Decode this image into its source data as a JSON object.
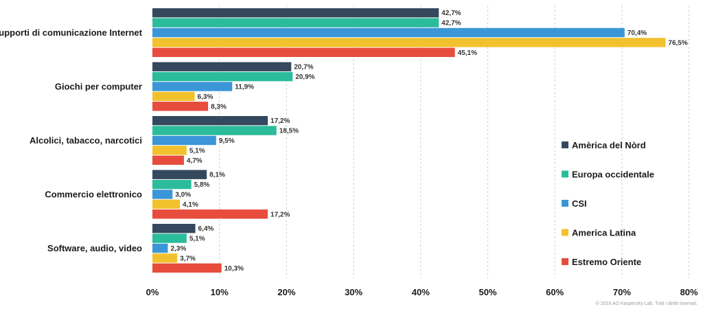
{
  "chart_data": {
    "type": "bar",
    "orientation": "horizontal",
    "categories": [
      "Supporti di comunicazione Internet",
      "Giochi per computer",
      "Alcolici, tabacco, narcotici",
      "Commercio elettronico",
      "Software, audio, video"
    ],
    "series": [
      {
        "name": "Amèrica del Nòrd",
        "color": "#34495e",
        "values": [
          42.7,
          20.7,
          17.2,
          8.1,
          6.4
        ],
        "labels": [
          "42,7%",
          "20,7%",
          "17,2%",
          "8,1%",
          "6,4%"
        ]
      },
      {
        "name": "Europa occidentale",
        "color": "#2bbc9b",
        "values": [
          42.7,
          20.9,
          18.5,
          5.8,
          5.1
        ],
        "labels": [
          "42,7%",
          "20,9%",
          "18,5%",
          "5,8%",
          "5,1%"
        ]
      },
      {
        "name": "CSI",
        "color": "#3b96d8",
        "values": [
          70.4,
          11.9,
          9.5,
          3.0,
          2.3
        ],
        "labels": [
          "70,4%",
          "11,9%",
          "9,5%",
          "3,0%",
          "2,3%"
        ]
      },
      {
        "name": "America Latina",
        "color": "#f2c12e",
        "values": [
          76.5,
          6.3,
          5.1,
          4.1,
          3.7
        ],
        "labels": [
          "76,5%",
          "6,3%",
          "5,1%",
          "4,1%",
          "3,7%"
        ]
      },
      {
        "name": "Estremo Oriente",
        "color": "#e74c3c",
        "values": [
          45.1,
          8.3,
          4.7,
          17.2,
          10.3
        ],
        "labels": [
          "45,1%",
          "8,3%",
          "4,7%",
          "17,2%",
          "10,3%"
        ]
      }
    ],
    "xlim": [
      0,
      80
    ],
    "xticks": [
      0,
      10,
      20,
      30,
      40,
      50,
      60,
      70,
      80
    ],
    "xtick_labels": [
      "0%",
      "10%",
      "20%",
      "30%",
      "40%",
      "50%",
      "60%",
      "70%",
      "80%"
    ],
    "grid": true,
    "legend_position": "right",
    "title": "",
    "xlabel": "",
    "ylabel": ""
  },
  "footer": {
    "copyright": "© 2016 AO Kaspersky Lab. Tutti i diritti riservati."
  }
}
